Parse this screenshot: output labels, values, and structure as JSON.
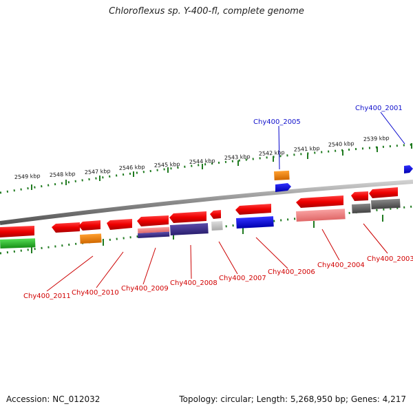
{
  "title": "Chloroflexus sp. Y-400-fl, complete genome",
  "footer": {
    "accession": "Accession: NC_012032",
    "stats": "Topology: circular; Length: 5,268,950 bp; Genes: 4,217"
  },
  "scale_labels": [
    "2549 kbp",
    "2548 kbp",
    "2547 kbp",
    "2546 kbp",
    "2545 kbp",
    "2544 kbp",
    "2543 kbp",
    "2542 kbp",
    "2541 kbp",
    "2540 kbp",
    "2539 kbp"
  ],
  "gene_labels_top": [
    "Chy400_2005",
    "Chy400_2001"
  ],
  "gene_labels_bottom": [
    "Chy400_2011",
    "Chy400_2010",
    "Chy400_2009",
    "Chy400_2008",
    "Chy400_2007",
    "Chy400_2006",
    "Chy400_2004",
    "Chy400_2003"
  ],
  "colors": {
    "backbone": "#8a8a8a",
    "tick": "#1f7a1f",
    "gene_red": "#ee0000",
    "cog_blue": "#0000ee",
    "cog_orange": "#ff8c00",
    "cog_green": "#22bb22",
    "cog_gray": "#666666",
    "cog_pink": "#f08080",
    "cog_navy": "#3a2d8a",
    "label_red": "#cc0000",
    "label_blue": "#0000cc"
  }
}
